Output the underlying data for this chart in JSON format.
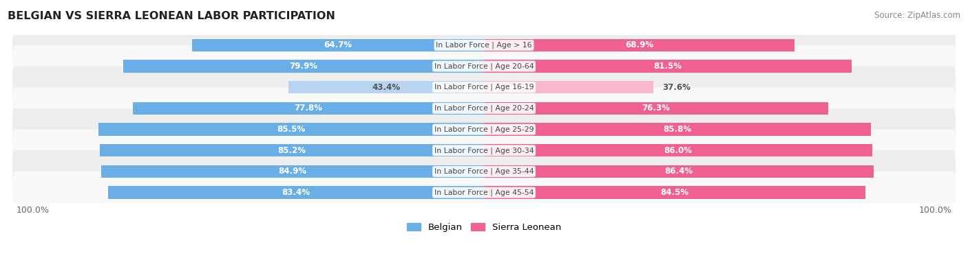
{
  "title": "BELGIAN VS SIERRA LEONEAN LABOR PARTICIPATION",
  "source": "Source: ZipAtlas.com",
  "categories": [
    "In Labor Force | Age > 16",
    "In Labor Force | Age 20-64",
    "In Labor Force | Age 16-19",
    "In Labor Force | Age 20-24",
    "In Labor Force | Age 25-29",
    "In Labor Force | Age 30-34",
    "In Labor Force | Age 35-44",
    "In Labor Force | Age 45-54"
  ],
  "belgian_values": [
    64.7,
    79.9,
    43.4,
    77.8,
    85.5,
    85.2,
    84.9,
    83.4
  ],
  "sierra_values": [
    68.9,
    81.5,
    37.6,
    76.3,
    85.8,
    86.0,
    86.4,
    84.5
  ],
  "belgian_color_full": "#6aaee8",
  "belgian_color_light": "#b8d4f0",
  "sierra_color_full": "#f06090",
  "sierra_color_light": "#f7b8cc",
  "label_color_white": "#ffffff",
  "label_color_dark": "#555555",
  "bg_row_color": "#eeeeee",
  "bg_row_alt": "#f8f8f8",
  "center_label_color": "#444444",
  "threshold": 60.0,
  "max_val": 100.0,
  "bar_height": 0.6,
  "legend_belgian": "Belgian",
  "legend_sierra": "Sierra Leonean"
}
